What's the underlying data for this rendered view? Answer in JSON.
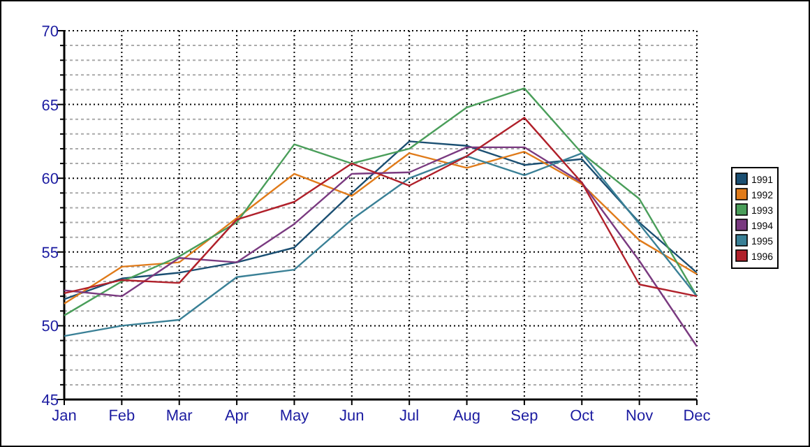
{
  "chart_data": {
    "type": "line",
    "categories": [
      "Jan",
      "Feb",
      "Mar",
      "Apr",
      "May",
      "Jun",
      "Jul",
      "Aug",
      "Sep",
      "Oct",
      "Nov",
      "Dec"
    ],
    "series": [
      {
        "name": "1991",
        "color": "#1b4f72",
        "values": [
          51.8,
          53.2,
          53.6,
          54.3,
          55.3,
          59.0,
          62.5,
          62.2,
          60.9,
          61.3,
          57.0,
          53.6
        ]
      },
      {
        "name": "1992",
        "color": "#e07b1a",
        "values": [
          51.5,
          54.0,
          54.3,
          57.3,
          60.3,
          58.8,
          61.7,
          60.7,
          61.8,
          59.6,
          55.8,
          53.5
        ]
      },
      {
        "name": "1993",
        "color": "#4a9e5a",
        "values": [
          50.7,
          53.0,
          54.7,
          57.0,
          62.3,
          61.0,
          62.0,
          64.8,
          66.1,
          61.7,
          58.6,
          52.0
        ]
      },
      {
        "name": "1994",
        "color": "#7a3a80",
        "values": [
          52.4,
          52.0,
          54.6,
          54.3,
          56.9,
          60.3,
          60.4,
          62.1,
          62.1,
          59.7,
          54.4,
          48.6
        ]
      },
      {
        "name": "1995",
        "color": "#3a8096",
        "values": [
          49.3,
          50.0,
          50.4,
          53.3,
          53.8,
          57.2,
          60.0,
          61.5,
          60.2,
          61.7,
          56.9,
          52.0
        ]
      },
      {
        "name": "1996",
        "color": "#b0202a",
        "values": [
          52.2,
          53.1,
          52.9,
          57.2,
          58.4,
          61.0,
          59.5,
          61.5,
          64.1,
          59.7,
          52.8,
          52.0
        ]
      }
    ],
    "ylim": [
      45,
      70
    ],
    "yticks": [
      45,
      {
        "value": 46,
        "label": null
      },
      {
        "value": 47,
        "label": null
      },
      {
        "value": 48,
        "label": null
      },
      {
        "value": 49,
        "label": null
      },
      50,
      {
        "value": 51,
        "label": null
      },
      {
        "value": 52,
        "label": null
      },
      {
        "value": 53,
        "label": null
      },
      {
        "value": 54,
        "label": null
      },
      55,
      {
        "value": 56,
        "label": null
      },
      {
        "value": 57,
        "label": null
      },
      {
        "value": 58,
        "label": null
      },
      {
        "value": 59,
        "label": null
      },
      60,
      {
        "value": 61,
        "label": null
      },
      {
        "value": 62,
        "label": null
      },
      {
        "value": 63,
        "label": null
      },
      {
        "value": 64,
        "label": null
      },
      65,
      {
        "value": 66,
        "label": null
      },
      {
        "value": 67,
        "label": null
      },
      {
        "value": 68,
        "label": null
      },
      {
        "value": 69,
        "label": null
      },
      70
    ],
    "grid": true,
    "legend": "right",
    "marker": "none",
    "line_style": "solid"
  }
}
